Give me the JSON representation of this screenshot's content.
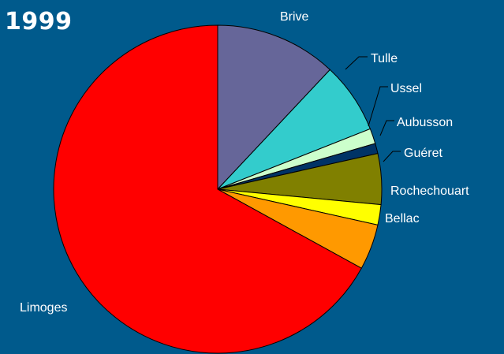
{
  "chart_data": {
    "type": "pie",
    "title": "1999",
    "categories": [
      "Brive",
      "Tulle",
      "Ussel",
      "Aubusson",
      "Guéret",
      "Rochechouart",
      "Bellac",
      "Limoges"
    ],
    "values": [
      12.0,
      7.0,
      1.5,
      1.0,
      5.0,
      2.0,
      4.5,
      67.0
    ],
    "colors": [
      "#666699",
      "#33cccc",
      "#ccffcc",
      "#003366",
      "#808000",
      "#ffff00",
      "#ff9900",
      "#ff0000"
    ],
    "start": "12 o'clock",
    "direction": "clockwise",
    "legend": "none"
  }
}
